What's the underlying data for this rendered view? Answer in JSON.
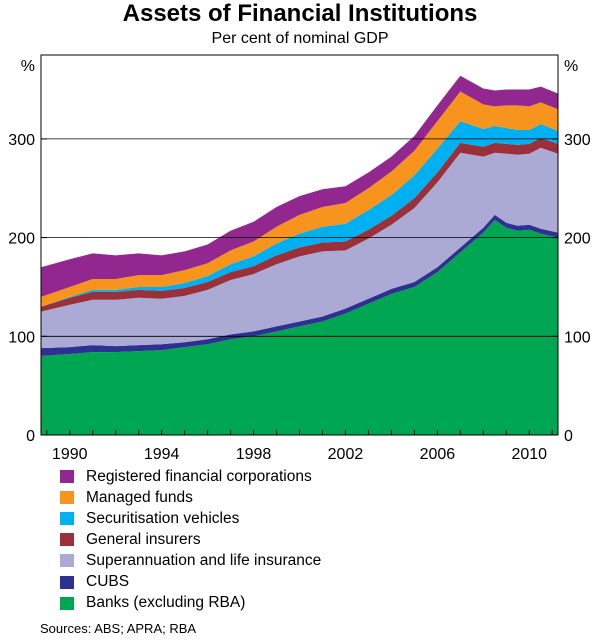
{
  "chart_data": {
    "type": "area",
    "stacked": true,
    "title": "Assets of Financial Institutions",
    "subtitle": "Per cent of nominal GDP",
    "y_unit_left": "%",
    "y_unit_right": "%",
    "ylim": [
      0,
      385
    ],
    "yticks": [
      0,
      100,
      200,
      300
    ],
    "xlim": [
      1988.75,
      2011.25
    ],
    "xticks": [
      1990,
      1994,
      1998,
      2002,
      2006,
      2010
    ],
    "x": [
      1988.75,
      1990,
      1991,
      1992,
      1993,
      1994,
      1995,
      1996,
      1997,
      1998,
      1999,
      2000,
      2001,
      2002,
      2003,
      2004,
      2005,
      2006,
      2007,
      2008,
      2008.5,
      2009,
      2009.5,
      2010,
      2010.5,
      2011.25
    ],
    "series": [
      {
        "name": "Banks (excluding RBA)",
        "color": "#00a651",
        "values": [
          80,
          82,
          84,
          84,
          85,
          86,
          89,
          92,
          97,
          100,
          105,
          110,
          115,
          123,
          133,
          143,
          150,
          165,
          185,
          205,
          218,
          210,
          207,
          208,
          204,
          200
        ]
      },
      {
        "name": "CUBS",
        "color": "#2e3192",
        "values": [
          8,
          7,
          7,
          6,
          6,
          6,
          5,
          5,
          5,
          5,
          5,
          5,
          5,
          5,
          5,
          5,
          5,
          5,
          5,
          5,
          5,
          5,
          5,
          5,
          5,
          5
        ]
      },
      {
        "name": "Superannuation and life insurance",
        "color": "#aaaad4",
        "values": [
          37,
          43,
          46,
          47,
          48,
          46,
          47,
          50,
          55,
          58,
          63,
          66,
          66,
          59,
          61,
          65,
          75,
          86,
          96,
          72,
          63,
          70,
          72,
          72,
          82,
          80
        ]
      },
      {
        "name": "General insurers",
        "color": "#99303a",
        "values": [
          5,
          7,
          8,
          8,
          8,
          8,
          8,
          8,
          8,
          8,
          9,
          9,
          9,
          9,
          9,
          9,
          10,
          10,
          10,
          10,
          10,
          10,
          10,
          10,
          10,
          10
        ]
      },
      {
        "name": "Securitisation vehicles",
        "color": "#00b0f0",
        "values": [
          0,
          1,
          2,
          2,
          3,
          4,
          5,
          6,
          8,
          10,
          12,
          14,
          16,
          18,
          20,
          21,
          23,
          24,
          22,
          18,
          17,
          16,
          15,
          14,
          14,
          13
        ]
      },
      {
        "name": "Managed funds",
        "color": "#f7941d",
        "values": [
          10,
          10,
          11,
          11,
          12,
          12,
          13,
          13,
          14,
          15,
          17,
          19,
          20,
          21,
          22,
          24,
          25,
          28,
          30,
          25,
          20,
          23,
          25,
          24,
          22,
          22
        ]
      },
      {
        "name": "Registered financial corporations",
        "color": "#92278f",
        "values": [
          30,
          28,
          26,
          24,
          22,
          20,
          19,
          19,
          20,
          20,
          20,
          19,
          18,
          17,
          16,
          15,
          15,
          16,
          16,
          16,
          16,
          16,
          16,
          17,
          16,
          16
        ]
      }
    ],
    "legend_order": [
      "Registered financial corporations",
      "Managed funds",
      "Securitisation vehicles",
      "General insurers",
      "Superannuation and life insurance",
      "CUBS",
      "Banks (excluding RBA)"
    ],
    "grid": "horizontal",
    "legend_position": "bottom-left",
    "source_note": "Sources: ABS; APRA; RBA"
  }
}
